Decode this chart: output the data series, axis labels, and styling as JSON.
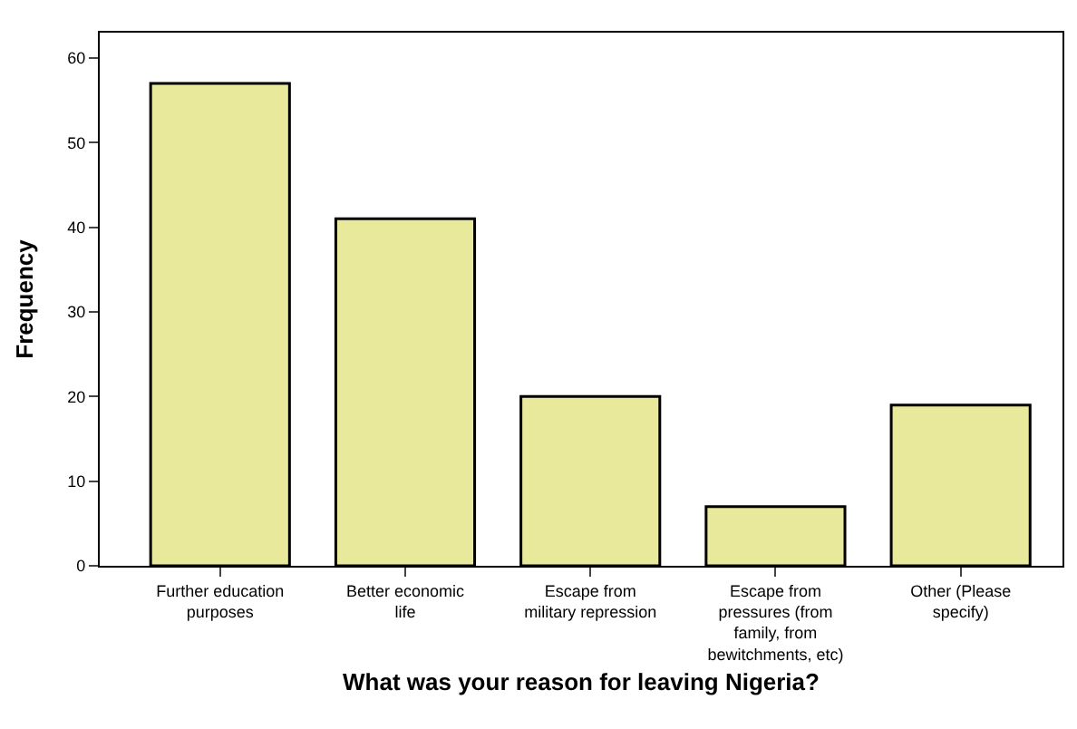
{
  "chart_data": {
    "type": "bar",
    "xlabel": "What was your reason for leaving Nigeria?",
    "ylabel": "Frequency",
    "categories": [
      "Further education purposes",
      "Better economic life",
      "Escape from military repression",
      "Escape from pressures (from family, from bewitchments, etc)",
      "Other (Please specify)"
    ],
    "values": [
      57,
      41,
      20,
      7,
      19
    ],
    "color": "#e9e99c",
    "ylim": [
      0,
      63
    ],
    "yticks": [
      0,
      10,
      20,
      30,
      40,
      50,
      60
    ]
  }
}
